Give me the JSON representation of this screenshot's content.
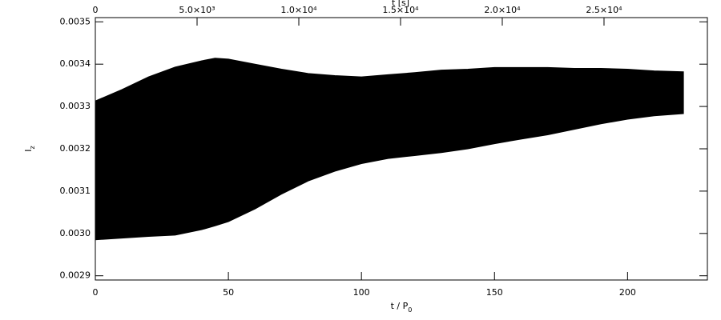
{
  "chart_data": {
    "type": "band",
    "x_label": {
      "text": "t / P",
      "sub": "0"
    },
    "y_label": {
      "text": "I",
      "sub": "z"
    },
    "x2_label": "t [s]",
    "x": [
      0,
      10,
      20,
      30,
      40,
      45,
      50,
      60,
      70,
      80,
      90,
      100,
      110,
      120,
      130,
      140,
      150,
      160,
      170,
      180,
      190,
      200,
      210,
      221
    ],
    "series": [
      {
        "color": "#000000",
        "values": [
          0.003313,
          0.00334,
          0.00337,
          0.003393,
          0.003408,
          0.003414,
          0.003412,
          0.0034,
          0.003388,
          0.003378,
          0.003373,
          0.00337,
          0.003375,
          0.00338,
          0.003386,
          0.003388,
          0.003392,
          0.003392,
          0.003392,
          0.00339,
          0.00339,
          0.003388,
          0.003384,
          0.003382
        ]
      },
      {
        "color": "#000000",
        "values": [
          0.002985,
          0.002989,
          0.002993,
          0.002996,
          0.003009,
          0.003018,
          0.003028,
          0.003058,
          0.003093,
          0.003124,
          0.003147,
          0.003165,
          0.003177,
          0.003184,
          0.003191,
          0.0032,
          0.003212,
          0.003223,
          0.003233,
          0.003246,
          0.003259,
          0.00327,
          0.003278,
          0.003283
        ]
      }
    ],
    "xlim": [
      0,
      230
    ],
    "xticks": [
      0,
      50,
      100,
      150,
      200
    ],
    "x2lim": [
      0,
      30080
    ],
    "x2ticks": [
      0,
      {
        "value": 5000,
        "label": "5.0×10³"
      },
      {
        "value": 10000,
        "label": "1.0×10⁴"
      },
      {
        "value": 15000,
        "label": "1.5×10⁴"
      },
      {
        "value": 20000,
        "label": "2.0×10⁴"
      },
      {
        "value": 25000,
        "label": "2.5×10⁴"
      }
    ],
    "ylim": [
      0.00289,
      0.00351
    ],
    "yticks": [
      0.0029,
      {
        "value": 0.003,
        "label": "0.0030"
      },
      0.0031,
      0.0032,
      0.0033,
      0.0034,
      0.0035
    ]
  }
}
